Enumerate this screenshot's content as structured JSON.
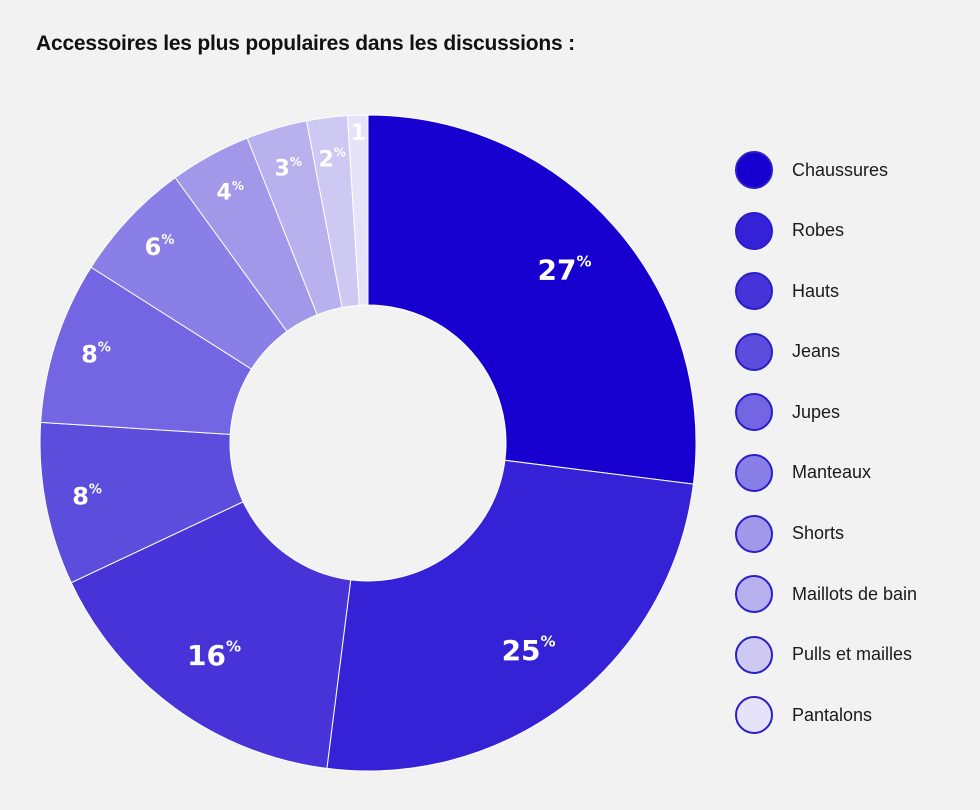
{
  "title": "Accessoires les plus populaires dans les discussions :",
  "chart_data": {
    "type": "pie",
    "variant": "donut",
    "title": "Accessoires les plus populaires dans les discussions :",
    "categories": [
      "Chaussures",
      "Robes",
      "Hauts",
      "Jeans",
      "Jupes",
      "Manteaux",
      "Shorts",
      "Maillots de bain",
      "Pulls et mailles",
      "Pantalons"
    ],
    "values": [
      27,
      25,
      16,
      8,
      8,
      6,
      4,
      3,
      2,
      1
    ],
    "labels": [
      "27",
      "25",
      "16",
      "8",
      "8",
      "6",
      "4",
      "3",
      "2",
      "1"
    ],
    "unit": "%",
    "colors": [
      "#1700cf",
      "#3521d6",
      "#4733d8",
      "#5d4ddd",
      "#7466e2",
      "#8a7fe6",
      "#a198ea",
      "#b8b1ee",
      "#cec9f2",
      "#e6e3f8"
    ],
    "legend_position": "right"
  }
}
